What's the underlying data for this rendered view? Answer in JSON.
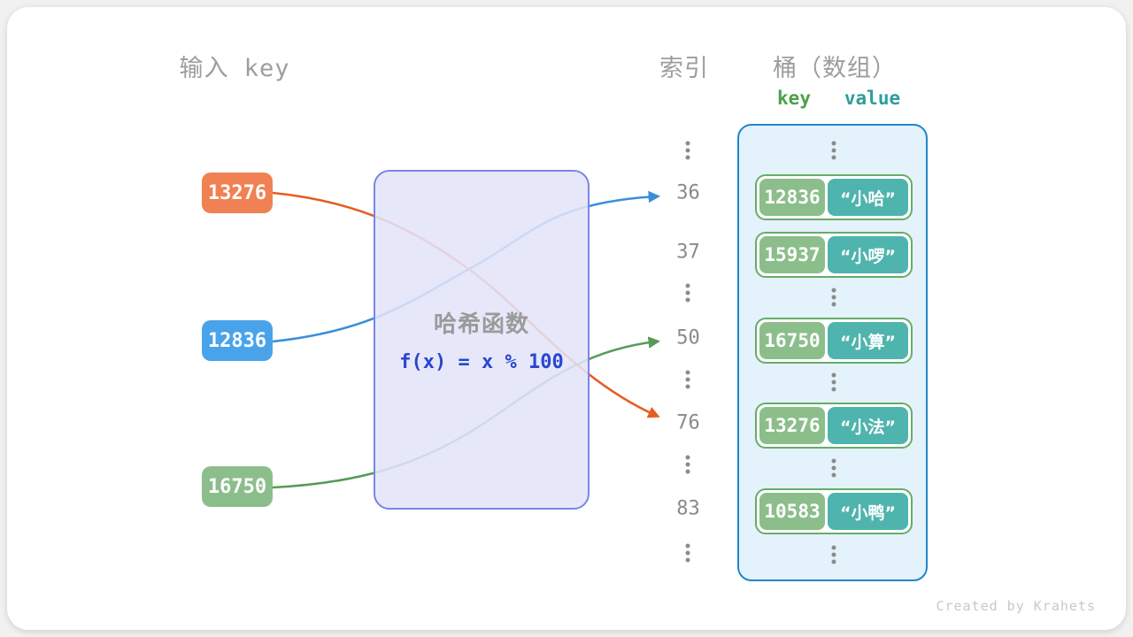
{
  "titles": {
    "input_panel": "输入 key",
    "index_column": "索引",
    "bucket": "桶（数组）",
    "key_label": "key",
    "value_label": "value"
  },
  "hash_box": {
    "title": "哈希函数",
    "formula": "f(x) = x % 100"
  },
  "inputs": [
    {
      "value": "13276",
      "color": "#f08152"
    },
    {
      "value": "12836",
      "color": "#49a3ea"
    },
    {
      "value": "16750",
      "color": "#8cbe8c"
    }
  ],
  "index_column": {
    "rows": [
      {
        "dots": true
      },
      {
        "label": "36"
      },
      {
        "label": "37"
      },
      {
        "dots": true
      },
      {
        "label": "50"
      },
      {
        "dots": true
      },
      {
        "label": "76"
      },
      {
        "dots": true
      },
      {
        "label": "83"
      },
      {
        "dots": true
      }
    ]
  },
  "bucket": {
    "rows": [
      {
        "dots": true
      },
      {
        "key": "12836",
        "value": "“小哈”"
      },
      {
        "key": "15937",
        "value": "“小啰”"
      },
      {
        "dots": true
      },
      {
        "key": "16750",
        "value": "“小算”"
      },
      {
        "dots": true
      },
      {
        "key": "13276",
        "value": "“小法”"
      },
      {
        "dots": true
      },
      {
        "key": "10583",
        "value": "“小鸭”"
      },
      {
        "dots": true
      }
    ]
  },
  "arrows": [
    {
      "from": "12836",
      "to_index": "36",
      "color": "#3a8ed8"
    },
    {
      "from": "16750",
      "to_index": "50",
      "color": "#589a58"
    },
    {
      "from": "13276",
      "to_index": "76",
      "color": "#e65c21"
    }
  ],
  "theme": {
    "page_bg": "#f1f1f1",
    "card_bg": "#ffffff",
    "title_gray": "#9d9d9d",
    "index_gray": "#8a8a8a",
    "key_label_green": "#4aa14a",
    "value_label_teal": "#2f9d9b",
    "hash_border": "#7b85e3",
    "hash_title": "#9a9a9a",
    "formula_blue": "#2b46cf",
    "bucket_border": "#1f87ca",
    "bucket_fill": "#e4f2fb",
    "pair_border": "#66ad66",
    "pair_key_fill": "#8cbe8c",
    "pair_value_fill": "#4fb4ae",
    "footer_gray": "#c8c8c8"
  },
  "footer": "Created by Krahets"
}
